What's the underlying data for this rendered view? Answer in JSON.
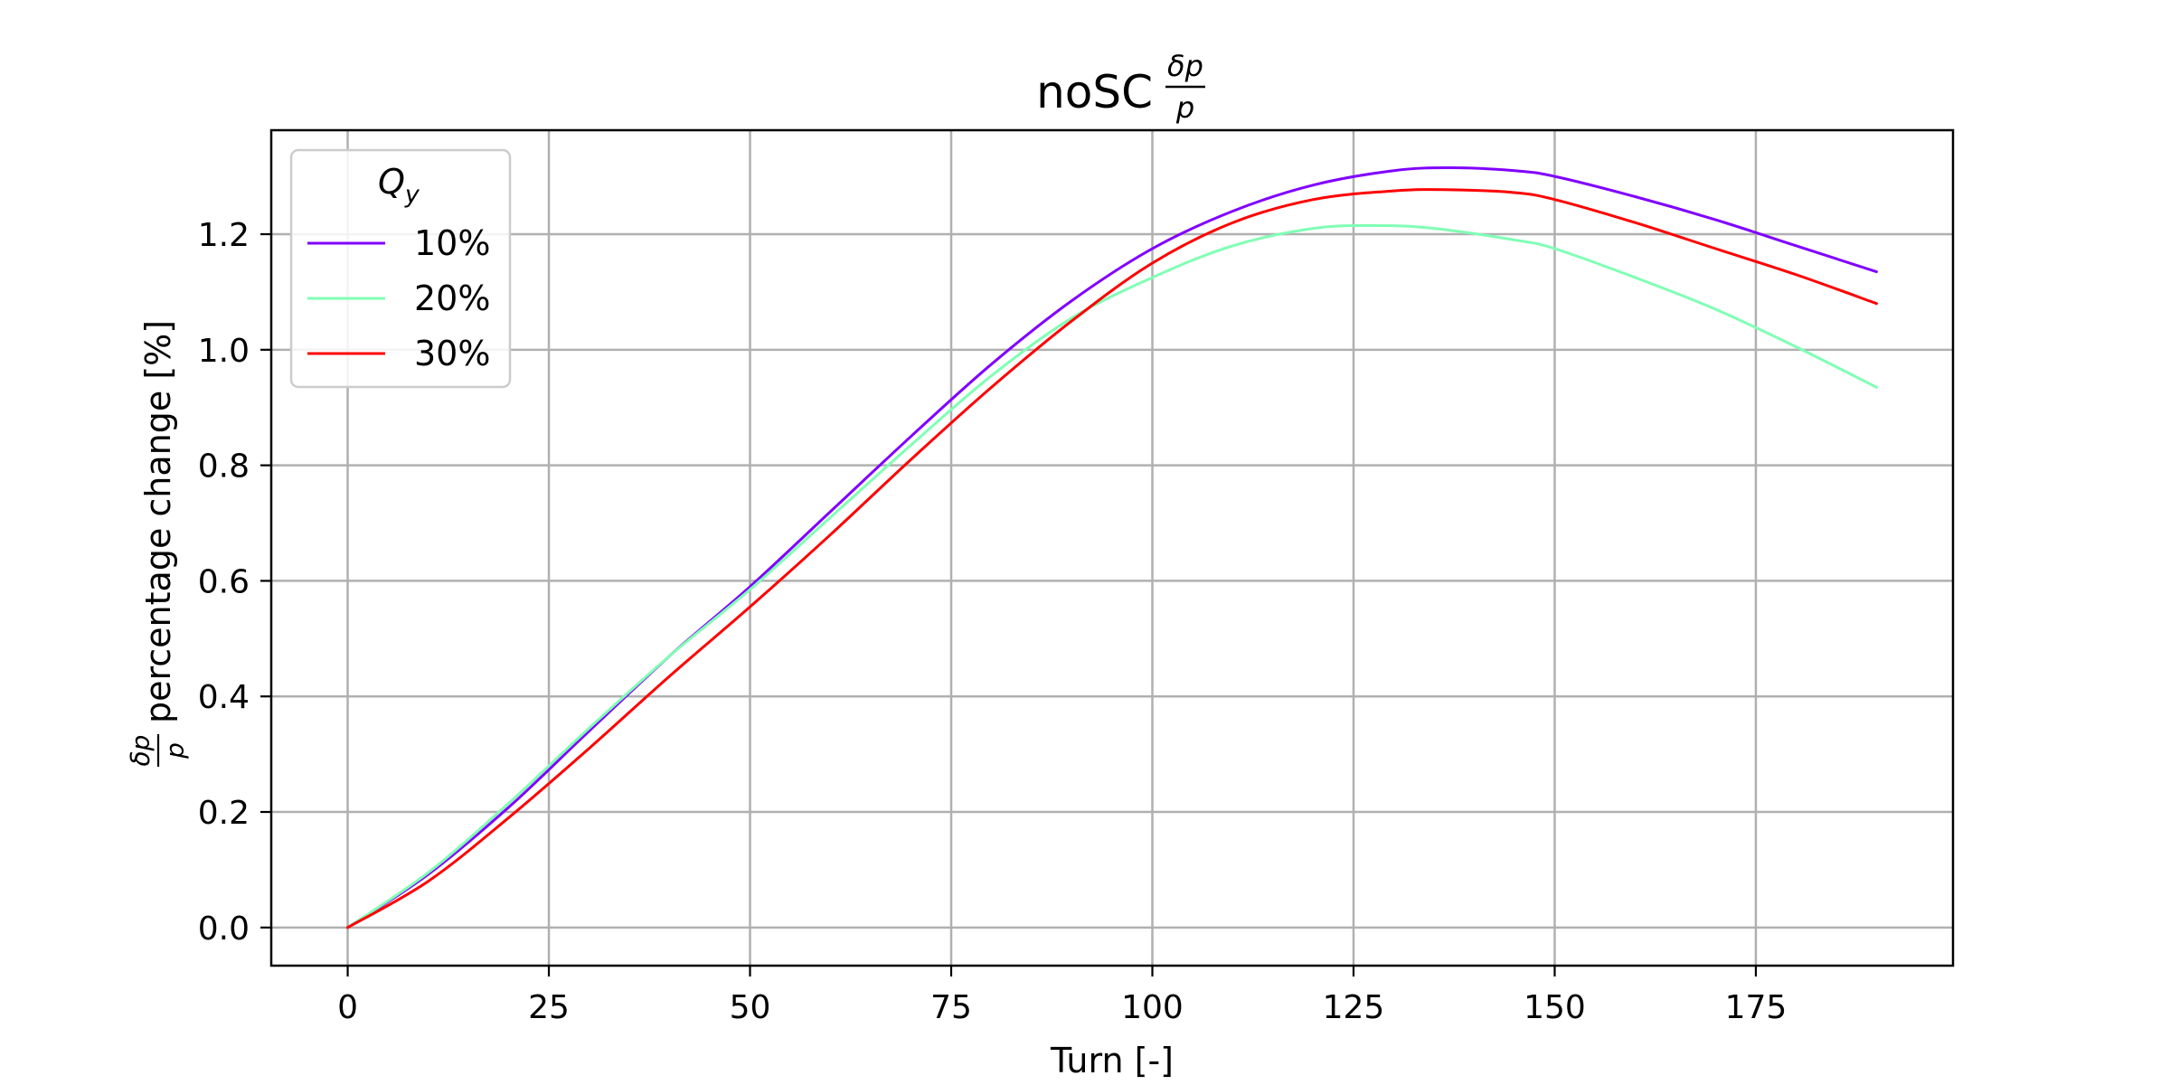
{
  "chart_data": {
    "type": "line",
    "title": "noSC",
    "title_fraction": {
      "numerator": "δp",
      "denominator": "p"
    },
    "xlabel": "Turn [-]",
    "ylabel": "percentage change [%]",
    "ylabel_fraction": {
      "numerator": "δp",
      "denominator": "p"
    },
    "xlim": [
      -9.5,
      199.5
    ],
    "ylim": [
      -0.066,
      1.38
    ],
    "xticks": [
      0,
      25,
      50,
      75,
      100,
      125,
      150,
      175
    ],
    "xtick_labels": [
      "0",
      "25",
      "50",
      "75",
      "100",
      "125",
      "150",
      "175"
    ],
    "yticks": [
      0.0,
      0.2,
      0.4,
      0.6,
      0.8,
      1.0,
      1.2
    ],
    "ytick_labels": [
      "0.0",
      "0.2",
      "0.4",
      "0.6",
      "0.8",
      "1.0",
      "1.2"
    ],
    "grid": true,
    "legend": {
      "title_base": "Q",
      "title_sub": "y",
      "placement": "top-left"
    },
    "series": [
      {
        "name": "10%",
        "color": "#8000ff",
        "x": [
          0,
          10,
          20,
          30,
          40,
          50,
          60,
          70,
          80,
          90,
          100,
          110,
          120,
          130,
          137,
          145,
          150,
          160,
          170,
          180,
          190
        ],
        "y": [
          0.0,
          0.092,
          0.208,
          0.34,
          0.47,
          0.59,
          0.72,
          0.85,
          0.975,
          1.085,
          1.175,
          1.24,
          1.285,
          1.31,
          1.315,
          1.31,
          1.3,
          1.265,
          1.225,
          1.18,
          1.135
        ]
      },
      {
        "name": "20%",
        "color": "#80ffb4",
        "x": [
          0,
          10,
          20,
          30,
          40,
          50,
          60,
          70,
          80,
          90,
          100,
          110,
          120,
          128,
          135,
          145,
          150,
          160,
          170,
          180,
          190
        ],
        "y": [
          0.0,
          0.095,
          0.215,
          0.345,
          0.47,
          0.585,
          0.71,
          0.835,
          0.955,
          1.055,
          1.125,
          1.18,
          1.21,
          1.215,
          1.21,
          1.19,
          1.175,
          1.125,
          1.07,
          1.005,
          0.935
        ]
      },
      {
        "name": "30%",
        "color": "#ff0000",
        "x": [
          0,
          10,
          20,
          30,
          40,
          50,
          60,
          70,
          80,
          90,
          100,
          110,
          120,
          130,
          137,
          145,
          150,
          160,
          170,
          180,
          190
        ],
        "y": [
          0.0,
          0.08,
          0.19,
          0.31,
          0.435,
          0.555,
          0.68,
          0.81,
          0.935,
          1.05,
          1.15,
          1.22,
          1.26,
          1.275,
          1.277,
          1.272,
          1.26,
          1.22,
          1.175,
          1.13,
          1.08
        ]
      }
    ]
  }
}
